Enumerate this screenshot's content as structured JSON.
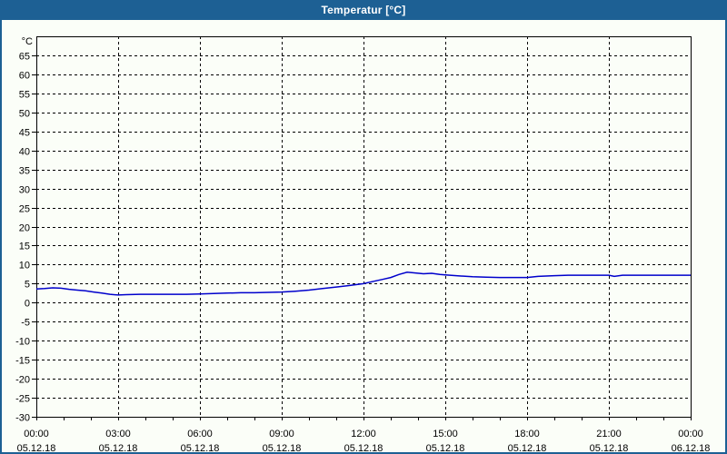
{
  "window": {
    "title": "Temperatur [°C]"
  },
  "theme": {
    "titlebar_color": "#1D6094",
    "title_text_color": "#FFFFFF",
    "window_bg": "#FBFEF8",
    "axis_color": "#000000",
    "grid_color": "#000000",
    "label_color": "#000000",
    "line_color": "#0000CC"
  },
  "chart_data": {
    "type": "line",
    "title": "Temperatur [°C]",
    "ylabel": "°C",
    "ylim": [
      -30,
      70
    ],
    "y_tick_step": 5,
    "y_ticks": [
      65,
      60,
      55,
      50,
      45,
      40,
      35,
      30,
      25,
      20,
      15,
      10,
      5,
      0,
      -5,
      -10,
      -15,
      -20,
      -25,
      -30
    ],
    "grid": "dashed",
    "legend": "none",
    "x_axis": {
      "range_hours": [
        0,
        24
      ],
      "minor_tick_hours": 1,
      "major_tick_hours": 3
    },
    "x_tick_labels": [
      {
        "time": "00:00",
        "date": "05.12.18"
      },
      {
        "time": "03:00",
        "date": "05.12.18"
      },
      {
        "time": "06:00",
        "date": "05.12.18"
      },
      {
        "time": "09:00",
        "date": "05.12.18"
      },
      {
        "time": "12:00",
        "date": "05.12.18"
      },
      {
        "time": "15:00",
        "date": "05.12.18"
      },
      {
        "time": "18:00",
        "date": "05.12.18"
      },
      {
        "time": "21:00",
        "date": "05.12.18"
      },
      {
        "time": "00:00",
        "date": "06.12.18"
      }
    ],
    "series": [
      {
        "name": "Temperatur",
        "color": "#0000CC",
        "points_hour_degC": [
          [
            0,
            3.6
          ],
          [
            0.3,
            3.7
          ],
          [
            0.6,
            3.9
          ],
          [
            0.9,
            3.8
          ],
          [
            1.2,
            3.5
          ],
          [
            1.5,
            3.3
          ],
          [
            1.8,
            3.1
          ],
          [
            2.1,
            2.8
          ],
          [
            2.4,
            2.5
          ],
          [
            2.7,
            2.2
          ],
          [
            3,
            2.0
          ],
          [
            3.3,
            2.1
          ],
          [
            3.8,
            2.2
          ],
          [
            4.5,
            2.2
          ],
          [
            5,
            2.2
          ],
          [
            5.5,
            2.2
          ],
          [
            6,
            2.3
          ],
          [
            6.5,
            2.4
          ],
          [
            7,
            2.5
          ],
          [
            7.5,
            2.6
          ],
          [
            8,
            2.6
          ],
          [
            8.5,
            2.7
          ],
          [
            9,
            2.8
          ],
          [
            9.5,
            3.0
          ],
          [
            10,
            3.3
          ],
          [
            10.5,
            3.7
          ],
          [
            11,
            4.1
          ],
          [
            11.5,
            4.5
          ],
          [
            12,
            5.0
          ],
          [
            12.3,
            5.5
          ],
          [
            12.7,
            6.1
          ],
          [
            13,
            6.6
          ],
          [
            13.3,
            7.4
          ],
          [
            13.6,
            8.0
          ],
          [
            13.9,
            7.8
          ],
          [
            14.2,
            7.6
          ],
          [
            14.5,
            7.7
          ],
          [
            14.8,
            7.4
          ],
          [
            15,
            7.3
          ],
          [
            15.4,
            7.1
          ],
          [
            15.8,
            6.9
          ],
          [
            16,
            6.8
          ],
          [
            16.5,
            6.7
          ],
          [
            17,
            6.6
          ],
          [
            17.5,
            6.6
          ],
          [
            18,
            6.6
          ],
          [
            18.4,
            6.9
          ],
          [
            19,
            7.1
          ],
          [
            19.5,
            7.2
          ],
          [
            20,
            7.2
          ],
          [
            20.5,
            7.2
          ],
          [
            21,
            7.2
          ],
          [
            21.2,
            6.9
          ],
          [
            21.5,
            7.2
          ],
          [
            22,
            7.2
          ],
          [
            22.5,
            7.2
          ],
          [
            23,
            7.2
          ],
          [
            23.5,
            7.2
          ],
          [
            24,
            7.2
          ]
        ]
      }
    ]
  }
}
